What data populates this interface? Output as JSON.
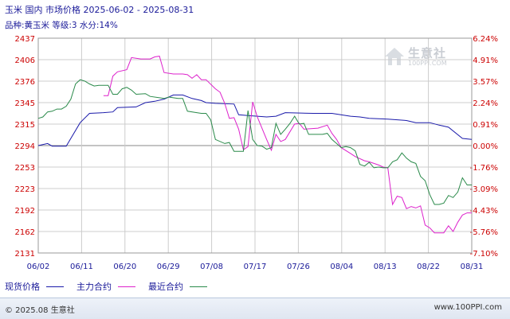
{
  "header": {
    "title": "玉米 国内 市场价格 2025-06-02 - 2025-08-31",
    "subtitle": "品种:黄玉米 等级:3 水分:14%"
  },
  "watermark": {
    "brand": "生意社",
    "url": "100PPI.COM"
  },
  "footer": {
    "copyright": "© 2025.08 生意社",
    "site": "www.100PPI.com"
  },
  "colors": {
    "spot": "#1a1aaa",
    "main_contract": "#dd22cc",
    "latest_contract": "#2a8a4a",
    "grid": "#cccccc",
    "axis_text": "#cc0000",
    "label_text": "#1a1a99"
  },
  "chart_data": {
    "type": "line",
    "title": "玉米 国内 市场价格 2025-06-02 - 2025-08-31",
    "x_tick_labels": [
      "06/02",
      "06/11",
      "06/20",
      "06/29",
      "07/08",
      "07/17",
      "07/26",
      "08/04",
      "08/13",
      "08/22",
      "08/31"
    ],
    "y_left_ticks": [
      2437,
      2406,
      2376,
      2345,
      2315,
      2294,
      2253,
      2223,
      2192,
      2162,
      2131
    ],
    "y_right_ticks": [
      "6.24%",
      "4.91%",
      "3.57%",
      "2.24%",
      "0.91%",
      "0.00%",
      "-1.76%",
      "-3.09%",
      "-4.43%",
      "-5.76%",
      "-7.10%"
    ],
    "y_left_range": [
      2131,
      2437
    ],
    "baseline": 2294,
    "grid": true,
    "legend_position": "bottom-left",
    "series": [
      {
        "name": "现货价格",
        "color": "#1a1aaa",
        "points": [
          [
            0,
            2294
          ],
          [
            2,
            2296
          ],
          [
            3,
            2293
          ],
          [
            6,
            2293
          ],
          [
            9,
            2317
          ],
          [
            11,
            2330
          ],
          [
            14,
            2331
          ],
          [
            16,
            2332
          ],
          [
            17,
            2338
          ],
          [
            21,
            2339
          ],
          [
            23,
            2345
          ],
          [
            25,
            2347
          ],
          [
            27,
            2350
          ],
          [
            29,
            2356
          ],
          [
            31,
            2356
          ],
          [
            33,
            2351
          ],
          [
            35,
            2348
          ],
          [
            36,
            2345
          ],
          [
            38,
            2344
          ],
          [
            42,
            2343
          ],
          [
            43,
            2328
          ],
          [
            45,
            2327
          ],
          [
            49,
            2325
          ],
          [
            51,
            2326
          ],
          [
            53,
            2331
          ],
          [
            59,
            2330
          ],
          [
            63,
            2330
          ],
          [
            67,
            2326
          ],
          [
            69,
            2325
          ],
          [
            71,
            2323
          ],
          [
            75,
            2322
          ],
          [
            79,
            2320
          ],
          [
            81,
            2317
          ],
          [
            84,
            2317
          ],
          [
            86,
            2314
          ],
          [
            88,
            2312
          ],
          [
            91,
            2301
          ],
          [
            93,
            2300
          ]
        ]
      },
      {
        "name": "主力合约",
        "color": "#dd22cc",
        "points": [
          [
            14,
            2355
          ],
          [
            15,
            2355
          ],
          [
            16,
            2383
          ],
          [
            17,
            2389
          ],
          [
            19,
            2392
          ],
          [
            20,
            2409
          ],
          [
            22,
            2407
          ],
          [
            24,
            2407
          ],
          [
            25,
            2410
          ],
          [
            26,
            2411
          ],
          [
            27,
            2388
          ],
          [
            29,
            2386
          ],
          [
            31,
            2386
          ],
          [
            32,
            2385
          ],
          [
            33,
            2380
          ],
          [
            34,
            2385
          ],
          [
            35,
            2378
          ],
          [
            36,
            2378
          ],
          [
            38,
            2365
          ],
          [
            39,
            2360
          ],
          [
            40,
            2344
          ],
          [
            41,
            2323
          ],
          [
            42,
            2324
          ],
          [
            43,
            2310
          ],
          [
            44,
            2286
          ],
          [
            45,
            2292
          ],
          [
            46,
            2346
          ],
          [
            47,
            2325
          ],
          [
            49,
            2300
          ],
          [
            50,
            2285
          ],
          [
            51,
            2305
          ],
          [
            52,
            2298
          ],
          [
            53,
            2300
          ],
          [
            55,
            2315
          ],
          [
            56,
            2316
          ],
          [
            57,
            2310
          ],
          [
            60,
            2311
          ],
          [
            62,
            2314
          ],
          [
            63,
            2306
          ],
          [
            64,
            2300
          ],
          [
            65,
            2290
          ],
          [
            67,
            2279
          ],
          [
            68,
            2273
          ],
          [
            70,
            2265
          ],
          [
            71,
            2263
          ],
          [
            72,
            2260
          ],
          [
            73,
            2257
          ],
          [
            74,
            2253
          ],
          [
            75,
            2252
          ],
          [
            76,
            2200
          ],
          [
            77,
            2212
          ],
          [
            78,
            2210
          ],
          [
            79,
            2194
          ],
          [
            80,
            2197
          ],
          [
            81,
            2195
          ],
          [
            82,
            2198
          ],
          [
            83,
            2171
          ],
          [
            84,
            2167
          ],
          [
            85,
            2160
          ],
          [
            87,
            2160
          ],
          [
            88,
            2170
          ],
          [
            89,
            2162
          ],
          [
            90,
            2175
          ],
          [
            91,
            2185
          ],
          [
            92,
            2188
          ],
          [
            93,
            2188
          ]
        ]
      },
      {
        "name": "最近合约",
        "color": "#2a8a4a",
        "points": [
          [
            0,
            2323
          ],
          [
            1,
            2325
          ],
          [
            2,
            2332
          ],
          [
            3,
            2333
          ],
          [
            4,
            2336
          ],
          [
            5,
            2336
          ],
          [
            6,
            2340
          ],
          [
            7,
            2350
          ],
          [
            8,
            2372
          ],
          [
            9,
            2378
          ],
          [
            10,
            2376
          ],
          [
            11,
            2372
          ],
          [
            12,
            2369
          ],
          [
            13,
            2370
          ],
          [
            14,
            2370
          ],
          [
            15,
            2370
          ],
          [
            16,
            2357
          ],
          [
            17,
            2357
          ],
          [
            18,
            2365
          ],
          [
            19,
            2367
          ],
          [
            20,
            2363
          ],
          [
            21,
            2357
          ],
          [
            23,
            2358
          ],
          [
            24,
            2354
          ],
          [
            26,
            2352
          ],
          [
            27,
            2351
          ],
          [
            28,
            2353
          ],
          [
            29,
            2352
          ],
          [
            30,
            2351
          ],
          [
            31,
            2351
          ],
          [
            32,
            2333
          ],
          [
            34,
            2331
          ],
          [
            35,
            2330
          ],
          [
            36,
            2330
          ],
          [
            37,
            2321
          ],
          [
            38,
            2300
          ],
          [
            40,
            2296
          ],
          [
            41,
            2297
          ],
          [
            42,
            2283
          ],
          [
            44,
            2283
          ],
          [
            45,
            2334
          ],
          [
            46,
            2300
          ],
          [
            47,
            2294
          ],
          [
            48,
            2293
          ],
          [
            49,
            2287
          ],
          [
            50,
            2290
          ],
          [
            51,
            2316
          ],
          [
            52,
            2305
          ],
          [
            53,
            2310
          ],
          [
            54,
            2316
          ],
          [
            55,
            2326
          ],
          [
            56,
            2315
          ],
          [
            57,
            2316
          ],
          [
            58,
            2305
          ],
          [
            61,
            2305
          ],
          [
            62,
            2306
          ],
          [
            63,
            2300
          ],
          [
            64,
            2296
          ],
          [
            65,
            2290
          ],
          [
            66,
            2292
          ],
          [
            67,
            2290
          ],
          [
            68,
            2284
          ],
          [
            69,
            2258
          ],
          [
            70,
            2255
          ],
          [
            71,
            2262
          ],
          [
            72,
            2252
          ],
          [
            73,
            2253
          ],
          [
            74,
            2252
          ],
          [
            75,
            2252
          ],
          [
            76,
            2263
          ],
          [
            77,
            2267
          ],
          [
            78,
            2280
          ],
          [
            79,
            2270
          ],
          [
            80,
            2263
          ],
          [
            81,
            2260
          ],
          [
            82,
            2240
          ],
          [
            83,
            2234
          ],
          [
            84,
            2214
          ],
          [
            85,
            2200
          ],
          [
            86,
            2200
          ],
          [
            87,
            2202
          ],
          [
            88,
            2213
          ],
          [
            89,
            2210
          ],
          [
            90,
            2218
          ],
          [
            91,
            2238
          ],
          [
            92,
            2228
          ],
          [
            93,
            2228
          ]
        ]
      }
    ]
  }
}
